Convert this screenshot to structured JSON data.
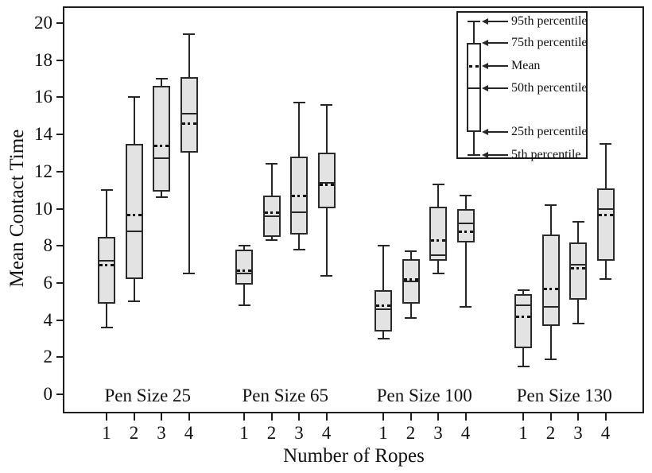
{
  "chart_data": {
    "type": "boxplot",
    "title": "",
    "ylabel": "Mean Contact Time",
    "xlabel": "Number of Ropes",
    "ylim": [
      0,
      20.9
    ],
    "yticks": [
      0,
      2,
      4,
      6,
      8,
      10,
      12,
      14,
      16,
      18,
      20
    ],
    "grid": false,
    "rope_labels": [
      "1",
      "2",
      "3",
      "4"
    ],
    "box_fill": "#e3e3e3",
    "line_color": "#262626",
    "groups": [
      {
        "label": "Pen Size 25",
        "boxes": [
          {
            "ropes": "1",
            "p5": 3.6,
            "p25": 4.9,
            "median": 7.2,
            "mean": 7.0,
            "p75": 8.5,
            "p95": 11.0
          },
          {
            "ropes": "2",
            "p5": 5.0,
            "p25": 6.2,
            "median": 8.8,
            "mean": 9.7,
            "p75": 13.5,
            "p95": 16.0
          },
          {
            "ropes": "3",
            "p5": 10.6,
            "p25": 10.9,
            "median": 12.7,
            "mean": 13.4,
            "p75": 16.6,
            "p95": 17.0
          },
          {
            "ropes": "4",
            "p5": 6.5,
            "p25": 13.0,
            "median": 15.1,
            "mean": 14.6,
            "p75": 17.1,
            "p95": 19.4
          }
        ]
      },
      {
        "label": "Pen Size 65",
        "boxes": [
          {
            "ropes": "1",
            "p5": 4.8,
            "p25": 5.9,
            "median": 6.5,
            "mean": 6.7,
            "p75": 7.8,
            "p95": 8.0
          },
          {
            "ropes": "2",
            "p5": 8.3,
            "p25": 8.5,
            "median": 9.6,
            "mean": 9.8,
            "p75": 10.7,
            "p95": 12.4
          },
          {
            "ropes": "3",
            "p5": 7.8,
            "p25": 8.6,
            "median": 9.8,
            "mean": 10.7,
            "p75": 12.8,
            "p95": 15.7
          },
          {
            "ropes": "4",
            "p5": 6.4,
            "p25": 10.0,
            "median": 11.4,
            "mean": 11.3,
            "p75": 13.0,
            "p95": 15.6
          }
        ]
      },
      {
        "label": "Pen Size 100",
        "boxes": [
          {
            "ropes": "1",
            "p5": 3.0,
            "p25": 3.4,
            "median": 4.6,
            "mean": 4.8,
            "p75": 5.6,
            "p95": 8.0
          },
          {
            "ropes": "2",
            "p5": 4.1,
            "p25": 4.9,
            "median": 6.1,
            "mean": 6.2,
            "p75": 7.3,
            "p95": 7.7
          },
          {
            "ropes": "3",
            "p5": 6.5,
            "p25": 7.2,
            "median": 7.5,
            "mean": 8.3,
            "p75": 10.1,
            "p95": 11.3
          },
          {
            "ropes": "4",
            "p5": 4.7,
            "p25": 8.2,
            "median": 9.2,
            "mean": 8.8,
            "p75": 10.0,
            "p95": 10.7
          }
        ]
      },
      {
        "label": "Pen Size 130",
        "boxes": [
          {
            "ropes": "1",
            "p5": 1.5,
            "p25": 2.5,
            "median": 4.8,
            "mean": 4.2,
            "p75": 5.4,
            "p95": 5.6
          },
          {
            "ropes": "2",
            "p5": 1.9,
            "p25": 3.7,
            "median": 4.7,
            "mean": 5.7,
            "p75": 8.6,
            "p95": 10.2
          },
          {
            "ropes": "3",
            "p5": 3.8,
            "p25": 5.1,
            "median": 7.0,
            "mean": 6.8,
            "p75": 8.2,
            "p95": 9.3
          },
          {
            "ropes": "4",
            "p5": 6.2,
            "p25": 7.2,
            "median": 10.0,
            "mean": 9.7,
            "p75": 11.1,
            "p95": 13.5
          }
        ]
      }
    ],
    "legend": {
      "entries": [
        "95th percentile",
        "75th percentile",
        "Mean",
        "50th percentile",
        "25th percentile",
        "5th percentile"
      ]
    }
  }
}
